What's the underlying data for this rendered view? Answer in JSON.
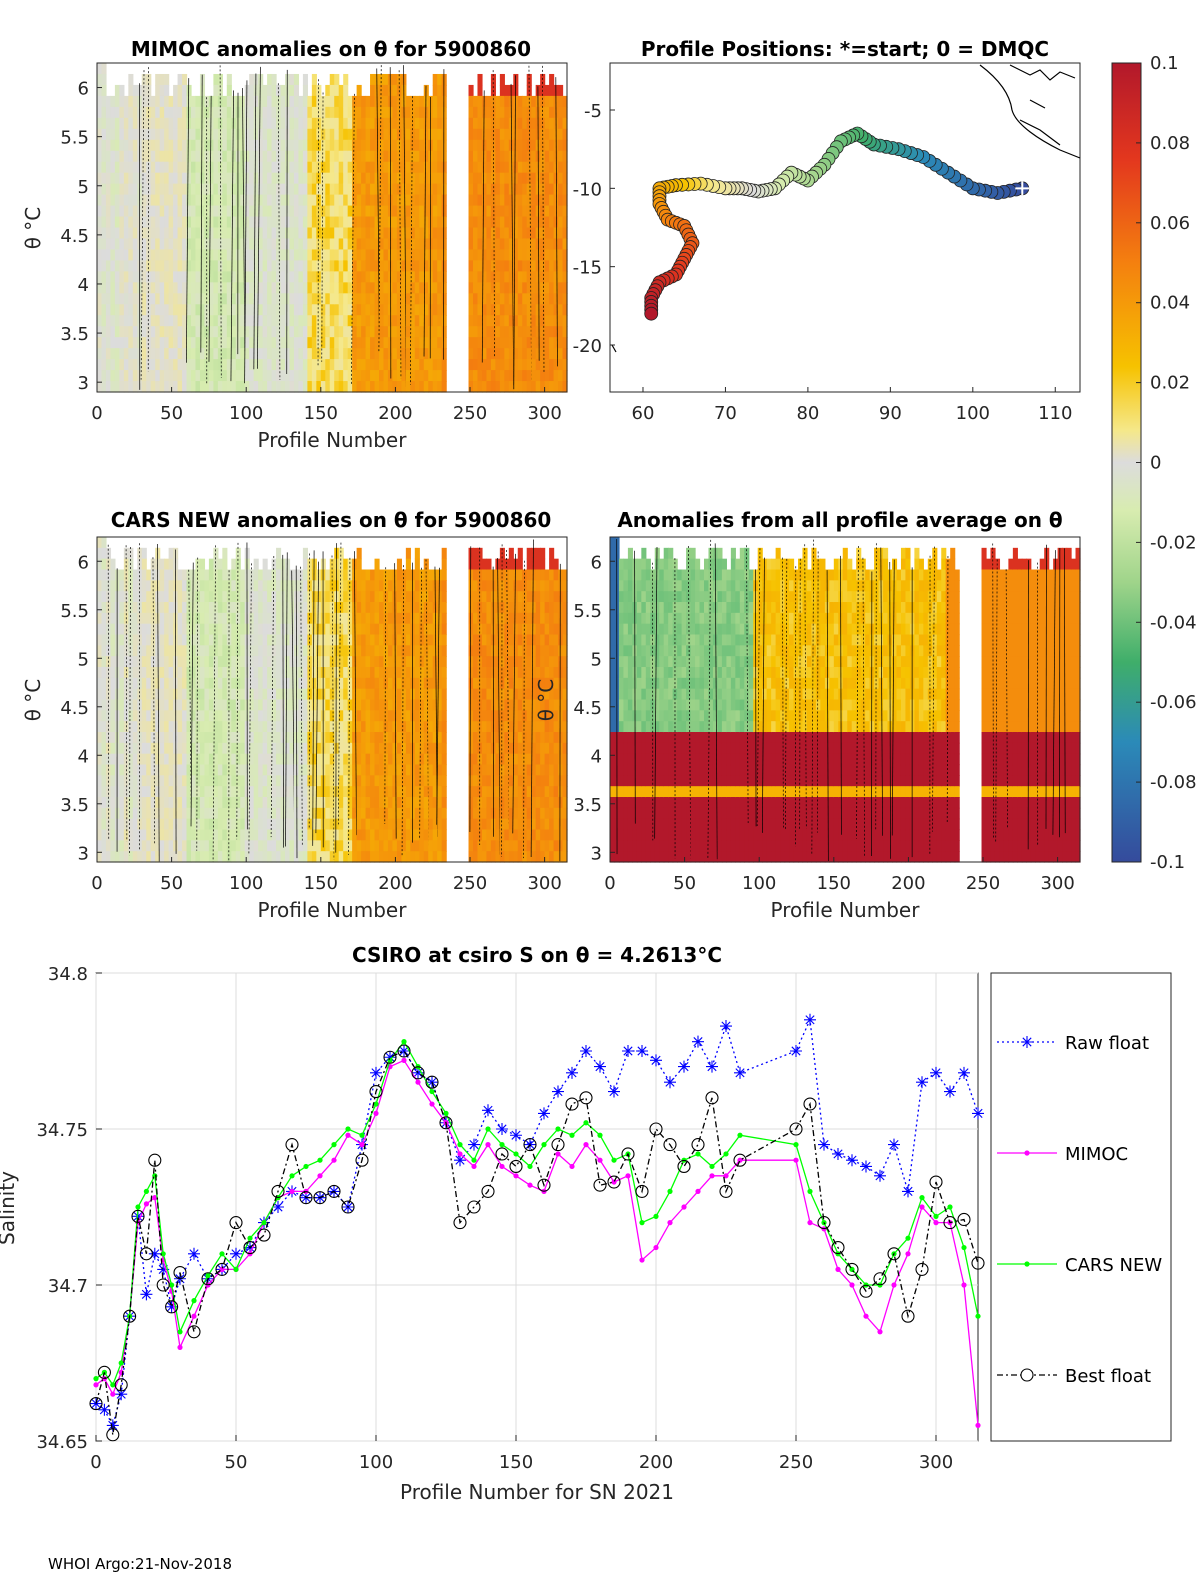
{
  "figure_footer": "WHOI Argo:21-Nov-2018",
  "colorbar": {
    "ticks": [
      "0.1",
      "0.08",
      "0.06",
      "0.04",
      "0.02",
      "0",
      "-0.02",
      "-0.04",
      "-0.06",
      "-0.08",
      "-0.1"
    ],
    "range": [
      -0.1,
      0.1
    ]
  },
  "chart_data": [
    {
      "type": "heatmap",
      "title": "MIMOC anomalies on θ  for 5900860",
      "xlabel": "Profile Number",
      "ylabel": "θ °C",
      "xticks": [
        "0",
        "50",
        "100",
        "150",
        "200",
        "250",
        "300"
      ],
      "yticks": [
        "6",
        "5.5",
        "5",
        "4.5",
        "4",
        "3.5",
        "3"
      ],
      "xlim": [
        0,
        315
      ],
      "ylim": [
        2.9,
        6.25
      ],
      "column_anomaly_by_profile_range": [
        {
          "from": 0,
          "to": 90,
          "value": 0.0
        },
        {
          "from": 90,
          "to": 140,
          "value": -0.01
        },
        {
          "from": 140,
          "to": 230,
          "value": 0.04
        },
        {
          "from": 250,
          "to": 315,
          "value": 0.05
        }
      ]
    },
    {
      "type": "scatter",
      "title": "Profile Positions: *=start; 0 = DMQC",
      "xticks": [
        "60",
        "70",
        "80",
        "90",
        "100",
        "110"
      ],
      "yticks": [
        "-5",
        "-10",
        "-15",
        "-20"
      ],
      "xlim": [
        56,
        113
      ],
      "ylim": [
        -23,
        -2
      ],
      "track_lon_lat": [
        [
          106,
          -10
        ],
        [
          103,
          -10.3
        ],
        [
          100,
          -10
        ],
        [
          97,
          -9
        ],
        [
          94,
          -8
        ],
        [
          91,
          -7.5
        ],
        [
          88,
          -7.2
        ],
        [
          86,
          -6.5
        ],
        [
          84,
          -7
        ],
        [
          82,
          -8.5
        ],
        [
          80,
          -9.5
        ],
        [
          78,
          -9
        ],
        [
          76,
          -10
        ],
        [
          74,
          -10.2
        ],
        [
          72,
          -10
        ],
        [
          70,
          -10
        ],
        [
          67,
          -9.7
        ],
        [
          64,
          -9.8
        ],
        [
          62,
          -10
        ],
        [
          62,
          -11
        ],
        [
          63,
          -12
        ],
        [
          65,
          -12.4
        ],
        [
          66,
          -13.5
        ],
        [
          65,
          -14.5
        ],
        [
          64,
          -15.5
        ],
        [
          62,
          -16
        ],
        [
          61,
          -17
        ],
        [
          61,
          -18
        ]
      ]
    },
    {
      "type": "heatmap",
      "title": "CARS NEW anomalies on θ for 5900860",
      "xlabel": "Profile Number",
      "ylabel": "θ °C",
      "xticks": [
        "0",
        "50",
        "100",
        "150",
        "200",
        "250",
        "300"
      ],
      "yticks": [
        "6",
        "5.5",
        "5",
        "4.5",
        "4",
        "3.5",
        "3"
      ],
      "xlim": [
        0,
        315
      ],
      "ylim": [
        2.9,
        6.25
      ]
    },
    {
      "type": "heatmap",
      "title": "Anomalies from all profile average on θ",
      "xlabel": "Profile Number",
      "ylabel": "θ °C",
      "xticks": [
        "0",
        "50",
        "100",
        "150",
        "200",
        "250",
        "300"
      ],
      "yticks": [
        "6",
        "5.5",
        "5",
        "4.5",
        "4",
        "3.5",
        "3"
      ],
      "xlim": [
        0,
        315
      ],
      "ylim": [
        2.9,
        6.25
      ]
    },
    {
      "type": "line",
      "title": "CSIRO at csiro S on θ = 4.2613°C",
      "xlabel": "Profile Number for SN 2021",
      "ylabel": "Salinity",
      "xticks": [
        "0",
        "50",
        "100",
        "150",
        "200",
        "250",
        "300"
      ],
      "yticks": [
        "34.8",
        "34.75",
        "34.7",
        "34.65"
      ],
      "xlim": [
        0,
        315
      ],
      "ylim": [
        34.65,
        34.8
      ],
      "legend": [
        "Raw float",
        "MIMOC",
        "CARS NEW",
        "Best float"
      ],
      "series": [
        {
          "name": "Raw float",
          "color": "#0000ff",
          "x": [
            0,
            3,
            6,
            9,
            12,
            15,
            18,
            21,
            24,
            27,
            30,
            35,
            40,
            45,
            50,
            55,
            60,
            65,
            70,
            75,
            80,
            85,
            90,
            95,
            100,
            105,
            110,
            115,
            120,
            125,
            130,
            135,
            140,
            145,
            150,
            155,
            160,
            165,
            170,
            175,
            180,
            185,
            190,
            195,
            200,
            205,
            210,
            215,
            220,
            225,
            230,
            250,
            255,
            260,
            265,
            270,
            275,
            280,
            285,
            290,
            295,
            300,
            305,
            310,
            315
          ],
          "y": [
            34.662,
            34.66,
            34.655,
            34.665,
            34.69,
            34.722,
            34.697,
            34.71,
            34.705,
            34.693,
            34.702,
            34.71,
            34.702,
            34.705,
            34.71,
            34.712,
            34.72,
            34.725,
            34.73,
            34.728,
            34.728,
            34.73,
            34.725,
            34.745,
            34.768,
            34.773,
            34.775,
            34.768,
            34.765,
            34.752,
            34.74,
            34.745,
            34.756,
            34.75,
            34.748,
            34.745,
            34.755,
            34.762,
            34.768,
            34.775,
            34.77,
            34.762,
            34.775,
            34.775,
            34.772,
            34.765,
            34.77,
            34.778,
            34.77,
            34.783,
            34.768,
            34.775,
            34.785,
            34.745,
            34.742,
            34.74,
            34.738,
            34.735,
            34.745,
            34.73,
            34.765,
            34.768,
            34.762,
            34.768,
            34.755
          ]
        },
        {
          "name": "MIMOC",
          "color": "#ff00ff",
          "x": [
            0,
            3,
            6,
            9,
            12,
            15,
            18,
            21,
            24,
            27,
            30,
            35,
            40,
            45,
            50,
            55,
            60,
            65,
            70,
            75,
            80,
            85,
            90,
            95,
            100,
            105,
            110,
            115,
            120,
            125,
            130,
            135,
            140,
            145,
            150,
            155,
            160,
            165,
            170,
            175,
            180,
            185,
            190,
            195,
            200,
            205,
            210,
            215,
            220,
            225,
            230,
            250,
            255,
            260,
            265,
            270,
            275,
            280,
            285,
            290,
            295,
            300,
            305,
            310,
            315
          ],
          "y": [
            34.668,
            34.67,
            34.665,
            34.672,
            34.69,
            34.72,
            34.726,
            34.728,
            34.708,
            34.698,
            34.68,
            34.69,
            34.7,
            34.705,
            34.705,
            34.71,
            34.72,
            34.728,
            34.73,
            34.73,
            34.735,
            34.74,
            34.748,
            34.745,
            34.755,
            34.77,
            34.772,
            34.765,
            34.758,
            34.752,
            34.742,
            34.738,
            34.745,
            34.738,
            34.735,
            34.732,
            34.73,
            34.742,
            34.738,
            34.745,
            34.74,
            34.733,
            34.735,
            34.708,
            34.712,
            34.72,
            34.725,
            34.73,
            34.735,
            34.735,
            34.74,
            34.74,
            34.72,
            34.718,
            34.705,
            34.7,
            34.69,
            34.685,
            34.7,
            34.71,
            34.725,
            34.72,
            34.72,
            34.7,
            34.655
          ]
        },
        {
          "name": "CARS NEW",
          "color": "#00ff00",
          "x": [
            0,
            3,
            6,
            9,
            12,
            15,
            18,
            21,
            24,
            27,
            30,
            35,
            40,
            45,
            50,
            55,
            60,
            65,
            70,
            75,
            80,
            85,
            90,
            95,
            100,
            105,
            110,
            115,
            120,
            125,
            130,
            135,
            140,
            145,
            150,
            155,
            160,
            165,
            170,
            175,
            180,
            185,
            190,
            195,
            200,
            205,
            210,
            215,
            220,
            225,
            230,
            250,
            255,
            260,
            265,
            270,
            275,
            280,
            285,
            290,
            295,
            300,
            305,
            310,
            315
          ],
          "y": [
            34.67,
            34.672,
            34.668,
            34.675,
            34.69,
            34.725,
            34.73,
            34.735,
            34.71,
            34.7,
            34.685,
            34.695,
            34.703,
            34.71,
            34.705,
            34.715,
            34.72,
            34.728,
            34.735,
            34.738,
            34.74,
            34.745,
            34.75,
            34.748,
            34.758,
            34.772,
            34.778,
            34.77,
            34.762,
            34.755,
            34.745,
            34.74,
            34.75,
            34.745,
            34.742,
            34.738,
            34.745,
            34.75,
            34.748,
            34.752,
            34.748,
            34.74,
            34.742,
            34.72,
            34.722,
            34.73,
            34.74,
            34.742,
            34.738,
            34.742,
            34.748,
            34.745,
            34.73,
            34.72,
            34.71,
            34.705,
            34.7,
            34.7,
            34.71,
            34.715,
            34.728,
            34.722,
            34.725,
            34.712,
            34.69
          ]
        },
        {
          "name": "Best float",
          "color": "#000000",
          "x": [
            0,
            3,
            6,
            9,
            12,
            15,
            18,
            21,
            24,
            27,
            30,
            35,
            40,
            45,
            50,
            55,
            60,
            65,
            70,
            75,
            80,
            85,
            90,
            95,
            100,
            105,
            110,
            115,
            120,
            125,
            130,
            135,
            140,
            145,
            150,
            155,
            160,
            165,
            170,
            175,
            180,
            185,
            190,
            195,
            200,
            205,
            210,
            215,
            220,
            225,
            230,
            250,
            255,
            260,
            265,
            270,
            275,
            280,
            285,
            290,
            295,
            300,
            305,
            310,
            315
          ],
          "y": [
            34.662,
            34.672,
            34.652,
            34.668,
            34.69,
            34.722,
            34.71,
            34.74,
            34.7,
            34.693,
            34.704,
            34.685,
            34.702,
            34.705,
            34.72,
            34.712,
            34.716,
            34.73,
            34.745,
            34.728,
            34.728,
            34.73,
            34.725,
            34.74,
            34.762,
            34.773,
            34.775,
            34.768,
            34.765,
            34.752,
            34.72,
            34.725,
            34.73,
            34.742,
            34.738,
            34.745,
            34.732,
            34.745,
            34.758,
            34.76,
            34.732,
            34.733,
            34.742,
            34.73,
            34.75,
            34.745,
            34.738,
            34.745,
            34.76,
            34.73,
            34.74,
            34.75,
            34.758,
            34.72,
            34.712,
            34.705,
            34.698,
            34.702,
            34.71,
            34.69,
            34.705,
            34.733,
            34.72,
            34.721,
            34.707
          ]
        }
      ]
    }
  ]
}
